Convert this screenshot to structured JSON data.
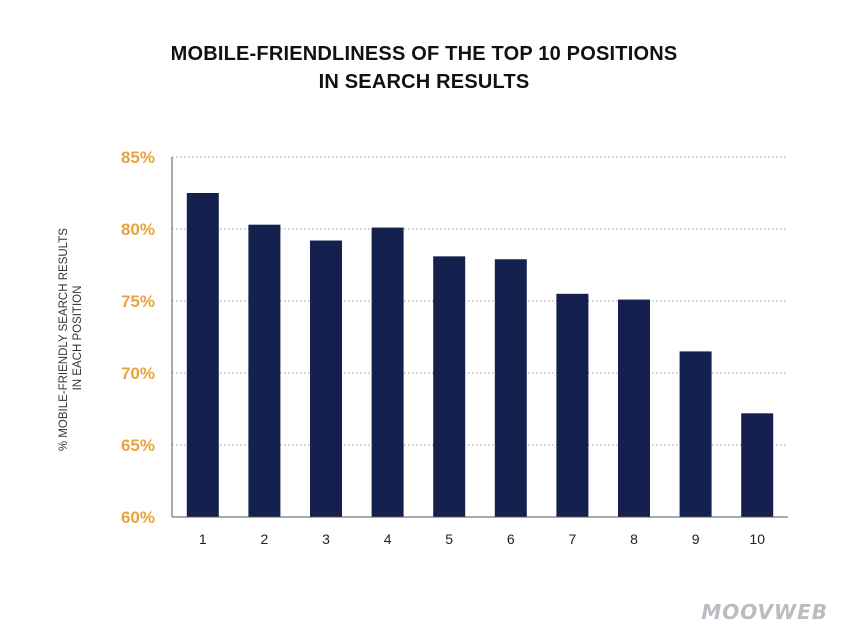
{
  "chart_data": {
    "type": "bar",
    "title_lines": [
      "MOBILE-FRIENDLINESS OF THE TOP 10 POSITIONS",
      "IN SEARCH RESULTS"
    ],
    "ylabel_lines": [
      "% MOBILE-FRIENDLY SEARCH RESULTS",
      "IN EACH POSITION"
    ],
    "xlabel": "",
    "categories": [
      "1",
      "2",
      "3",
      "4",
      "5",
      "6",
      "7",
      "8",
      "9",
      "10"
    ],
    "values": [
      82.5,
      80.3,
      79.2,
      80.1,
      78.1,
      77.9,
      75.5,
      75.1,
      71.5,
      67.2
    ],
    "ylim": [
      60,
      85
    ],
    "yticks": [
      60,
      65,
      70,
      75,
      80,
      85
    ],
    "ytick_labels": [
      "60%",
      "65%",
      "70%",
      "75%",
      "80%",
      "85%"
    ],
    "grid": true,
    "colors": {
      "bar": "#14214f",
      "ytick": "#e8a33c",
      "grid": "#9a9a9a"
    }
  },
  "watermark": "MOOVWEB"
}
